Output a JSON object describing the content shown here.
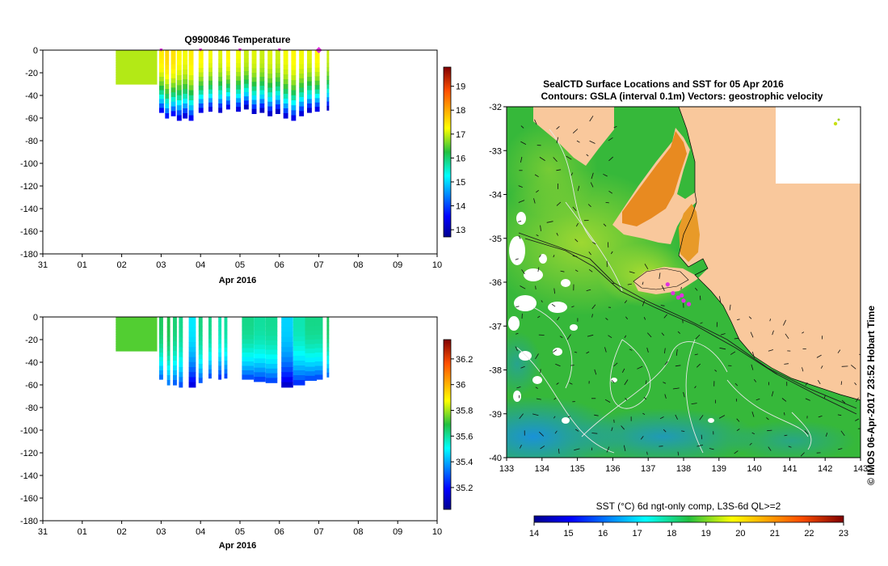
{
  "colors": {
    "land": "#f9c89c",
    "sea_base": "#36b83a",
    "magenta": "#e030e0"
  },
  "chart_data": [
    {
      "type": "heatmap",
      "title": "Q9900846  Temperature",
      "xlabel": "Apr 2016",
      "ylabel": "",
      "x_ticks": [
        "31",
        "01",
        "02",
        "03",
        "04",
        "05",
        "06",
        "07",
        "08",
        "09",
        "10"
      ],
      "y_ticks": [
        0,
        -20,
        -40,
        -60,
        -80,
        -100,
        -120,
        -140,
        -160,
        -180
      ],
      "ylim": [
        -180,
        0
      ],
      "colorbar": {
        "ticks": [
          13,
          14,
          15,
          16,
          17,
          18,
          19
        ],
        "range": [
          12.7,
          19.8
        ]
      },
      "profiles": [
        {
          "day": 1.85,
          "width": 1.05,
          "top": 0,
          "bottom": -30,
          "value": 16.9
        },
        {
          "day": 2.95,
          "width": 0.12,
          "bottom": -55,
          "value": 17.4
        },
        {
          "day": 3.1,
          "width": 0.1,
          "bottom": -60,
          "value": 17.6
        },
        {
          "day": 3.25,
          "width": 0.12,
          "bottom": -58,
          "value": 17.5
        },
        {
          "day": 3.4,
          "width": 0.12,
          "bottom": -62,
          "value": 17.3
        },
        {
          "day": 3.55,
          "width": 0.12,
          "bottom": -60,
          "value": 17.2
        },
        {
          "day": 3.7,
          "width": 0.12,
          "bottom": -62,
          "value": 17.4
        },
        {
          "day": 3.95,
          "width": 0.12,
          "bottom": -55,
          "value": 17.3
        },
        {
          "day": 4.2,
          "width": 0.1,
          "bottom": -54,
          "value": 17.2
        },
        {
          "day": 4.45,
          "width": 0.1,
          "bottom": -55,
          "value": 17.1
        },
        {
          "day": 4.65,
          "width": 0.1,
          "bottom": -52,
          "value": 17.3
        },
        {
          "day": 4.9,
          "width": 0.12,
          "bottom": -54,
          "value": 17.2
        },
        {
          "day": 5.1,
          "width": 0.12,
          "bottom": -52,
          "value": 17.0
        },
        {
          "day": 5.3,
          "width": 0.12,
          "bottom": -56,
          "value": 17.1
        },
        {
          "day": 5.5,
          "width": 0.12,
          "bottom": -55,
          "value": 17.0
        },
        {
          "day": 5.7,
          "width": 0.12,
          "bottom": -58,
          "value": 17.1
        },
        {
          "day": 5.9,
          "width": 0.12,
          "bottom": -56,
          "value": 17.0
        },
        {
          "day": 6.1,
          "width": 0.12,
          "bottom": -60,
          "value": 17.2
        },
        {
          "day": 6.3,
          "width": 0.12,
          "bottom": -62,
          "value": 17.3
        },
        {
          "day": 6.5,
          "width": 0.12,
          "bottom": -58,
          "value": 17.2
        },
        {
          "day": 6.7,
          "width": 0.12,
          "bottom": -55,
          "value": 17.1
        },
        {
          "day": 6.9,
          "width": 0.12,
          "bottom": -54,
          "value": 17.3
        },
        {
          "day": 7.2,
          "width": 0.06,
          "bottom": -53,
          "value": 17.0
        }
      ],
      "markers": [
        3.0,
        4.0,
        5.0,
        6.0,
        7.0
      ]
    },
    {
      "type": "heatmap",
      "title": "",
      "xlabel": "Apr 2016",
      "ylabel": "",
      "x_ticks": [
        "31",
        "01",
        "02",
        "03",
        "04",
        "05",
        "06",
        "07",
        "08",
        "09",
        "10"
      ],
      "y_ticks": [
        0,
        -20,
        -40,
        -60,
        -80,
        -100,
        -120,
        -140,
        -160,
        -180
      ],
      "ylim": [
        -180,
        0
      ],
      "colorbar": {
        "ticks": [
          35.2,
          35.4,
          35.6,
          35.8,
          36,
          36.2
        ],
        "range": [
          35.03,
          36.35
        ]
      },
      "profiles": [
        {
          "day": 1.85,
          "width": 1.05,
          "bottom": -30,
          "value": 35.73
        },
        {
          "day": 2.95,
          "width": 0.1,
          "bottom": -55,
          "value": 35.66
        },
        {
          "day": 3.15,
          "width": 0.08,
          "bottom": -60,
          "value": 35.68
        },
        {
          "day": 3.3,
          "width": 0.1,
          "bottom": -60,
          "value": 35.64
        },
        {
          "day": 3.45,
          "width": 0.1,
          "bottom": -62,
          "value": 35.62
        },
        {
          "day": 3.7,
          "width": 0.18,
          "bottom": -62,
          "value": 35.48
        },
        {
          "day": 3.95,
          "width": 0.1,
          "bottom": -58,
          "value": 35.63
        },
        {
          "day": 4.2,
          "width": 0.08,
          "bottom": -54,
          "value": 35.62
        },
        {
          "day": 4.45,
          "width": 0.08,
          "bottom": -55,
          "value": 35.58
        },
        {
          "day": 4.6,
          "width": 0.08,
          "bottom": -54,
          "value": 35.6
        },
        {
          "day": 5.05,
          "width": 0.3,
          "bottom": -55,
          "value": 35.62
        },
        {
          "day": 5.35,
          "width": 0.3,
          "bottom": -57,
          "value": 35.6
        },
        {
          "day": 5.65,
          "width": 0.3,
          "bottom": -58,
          "value": 35.61
        },
        {
          "day": 6.05,
          "width": 0.3,
          "bottom": -62,
          "value": 35.45
        },
        {
          "day": 6.35,
          "width": 0.3,
          "bottom": -60,
          "value": 35.58
        },
        {
          "day": 6.65,
          "width": 0.3,
          "bottom": -56,
          "value": 35.62
        },
        {
          "day": 6.9,
          "width": 0.2,
          "bottom": -55,
          "value": 35.62
        },
        {
          "day": 7.2,
          "width": 0.06,
          "bottom": -53,
          "value": 35.66
        }
      ]
    },
    {
      "type": "heatmap",
      "title": "SealCTD Surface Locations and SST for 05 Apr 2016",
      "subtitle": "Contours: GSLA (interval 0.1m) Vectors: geostrophic velocity",
      "xlabel": "",
      "x_ticks": [
        "133",
        "134",
        "135",
        "136",
        "137",
        "138",
        "139",
        "140",
        "141",
        "142",
        "143"
      ],
      "y_ticks": [
        -32,
        -33,
        -34,
        -35,
        -36,
        -37,
        -38,
        -39,
        -40
      ],
      "xlim": [
        133,
        143
      ],
      "ylim": [
        -40,
        -32
      ],
      "side_text": "© IMOS 06-Apr-2017 23:52 Hobart Time",
      "colorbar": {
        "label": "SST (°C) 6d ngt-only comp, L3S-6d QL>=2",
        "ticks": [
          14,
          15,
          16,
          17,
          18,
          19,
          20,
          21,
          22,
          23
        ],
        "range": [
          14,
          23
        ]
      },
      "seal_locations": [
        {
          "lon": 137.55,
          "lat": -36.05
        },
        {
          "lon": 137.7,
          "lat": -36.25
        },
        {
          "lon": 137.85,
          "lat": -36.35
        },
        {
          "lon": 138.0,
          "lat": -36.42
        },
        {
          "lon": 138.15,
          "lat": -36.5
        },
        {
          "lon": 137.95,
          "lat": -36.3
        }
      ]
    }
  ]
}
